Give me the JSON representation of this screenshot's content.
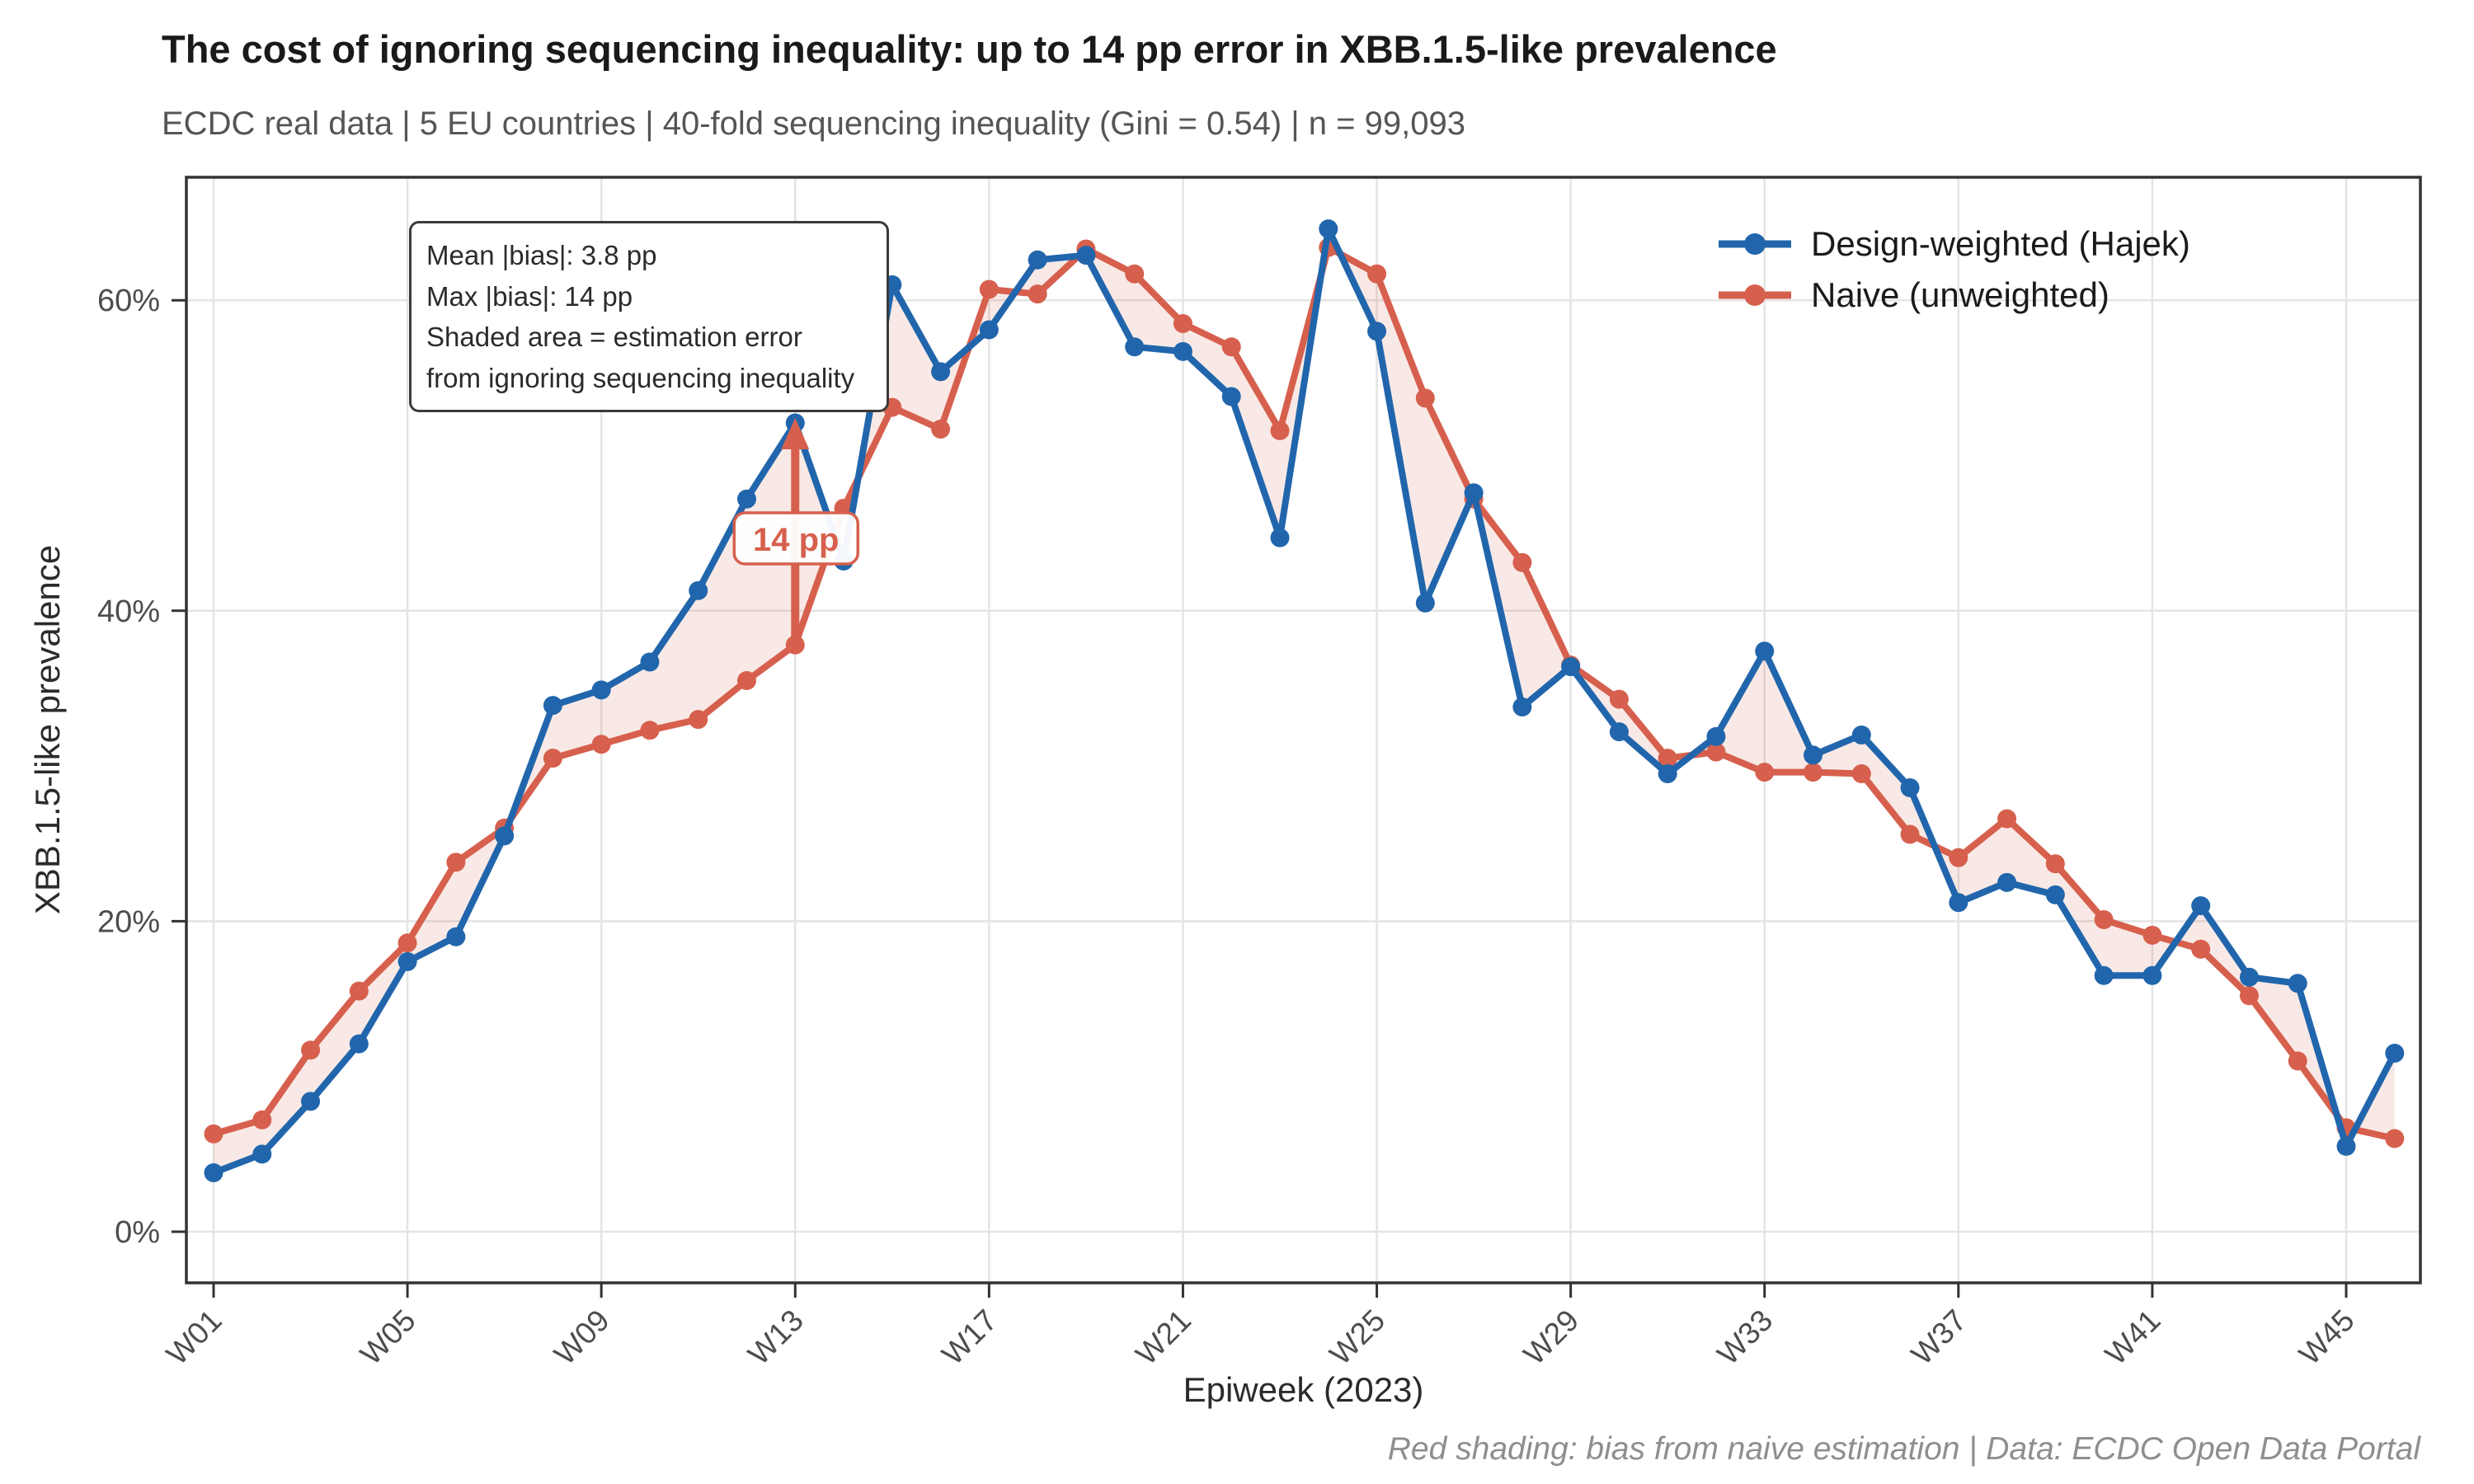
{
  "header": {
    "title": "The cost of ignoring sequencing inequality: up to 14 pp error in XBB.1.5-like prevalence",
    "subtitle": "ECDC real data | 5 EU countries | 40-fold sequencing inequality (Gini = 0.54) | n = 99,093"
  },
  "annotation_box": {
    "lines": [
      "Mean |bias|: 3.8 pp",
      "Max |bias|: 14 pp",
      "Shaded area = estimation error",
      "from ignoring sequencing inequality"
    ]
  },
  "legend": {
    "items": [
      {
        "label": "Design-weighted (Hajek)",
        "color": "#2166AC"
      },
      {
        "label": "Naive (unweighted)",
        "color": "#D6604D"
      }
    ]
  },
  "axes": {
    "x_title": "Epiweek (2023)",
    "y_title": "XBB.1.5-like prevalence",
    "y_tick_labels": [
      "0%",
      "20%",
      "40%",
      "60%"
    ],
    "x_tick_labels": [
      "W01",
      "W05",
      "W09",
      "W13",
      "W17",
      "W21",
      "W25",
      "W29",
      "W33",
      "W37",
      "W41",
      "W45"
    ]
  },
  "caption": "Red shading: bias from naive estimation | Data: ECDC Open Data Portal",
  "bias_callout": {
    "label": "14 pp",
    "week": "W13"
  },
  "colors": {
    "hajek_blue": "#2166AC",
    "naive_red": "#D6604D",
    "error_shading": "rgba(214,96,77,0.14)",
    "gridline": "#E4E4E4",
    "panel_border": "#333333",
    "tick_label": "#4D4D4D"
  },
  "chart_data": {
    "type": "line",
    "title": "The cost of ignoring sequencing inequality: up to 14 pp error in XBB.1.5-like prevalence",
    "subtitle": "ECDC real data | 5 EU countries | 40-fold sequencing inequality (Gini = 0.54) | n = 99,093",
    "xlabel": "Epiweek (2023)",
    "ylabel": "XBB.1.5-like prevalence",
    "ylim": [
      0,
      67
    ],
    "y_ticks_percent": [
      0,
      20,
      40,
      60
    ],
    "x_tick_every": 4,
    "grid": true,
    "legend_position": "top-right-inside",
    "x": [
      "W01",
      "W02",
      "W03",
      "W04",
      "W05",
      "W06",
      "W07",
      "W08",
      "W09",
      "W10",
      "W11",
      "W12",
      "W13",
      "W14",
      "W15",
      "W16",
      "W17",
      "W18",
      "W19",
      "W20",
      "W21",
      "W22",
      "W23",
      "W24",
      "W25",
      "W26",
      "W27",
      "W28",
      "W29",
      "W30",
      "W31",
      "W32",
      "W33",
      "W34",
      "W35",
      "W36",
      "W37",
      "W38",
      "W39",
      "W40",
      "W41",
      "W42",
      "W43",
      "W44",
      "W45",
      "W46"
    ],
    "series": [
      {
        "name": "Design-weighted (Hajek)",
        "color": "#2166AC",
        "values": [
          3.8,
          5.0,
          8.4,
          12.1,
          17.4,
          19.0,
          25.5,
          33.9,
          34.9,
          36.7,
          41.3,
          47.2,
          52.1,
          43.2,
          61.0,
          55.4,
          58.1,
          62.6,
          62.9,
          57.0,
          56.7,
          53.8,
          44.7,
          64.6,
          58.0,
          40.5,
          47.6,
          33.8,
          36.4,
          32.2,
          29.5,
          31.9,
          37.4,
          30.7,
          32.0,
          28.6,
          21.2,
          22.5,
          21.7,
          16.5,
          16.5,
          21.0,
          16.4,
          16.0,
          5.5,
          11.5
        ]
      },
      {
        "name": "Naive (unweighted)",
        "color": "#D6604D",
        "values": [
          6.3,
          7.2,
          11.7,
          15.5,
          18.6,
          23.8,
          26.0,
          30.5,
          31.4,
          32.3,
          33.0,
          35.5,
          37.8,
          46.6,
          53.1,
          51.7,
          60.7,
          60.4,
          63.3,
          61.7,
          58.5,
          57.0,
          51.6,
          63.4,
          61.7,
          53.7,
          47.2,
          43.1,
          36.5,
          34.3,
          30.5,
          30.9,
          29.6,
          29.6,
          29.5,
          25.6,
          24.1,
          26.6,
          23.7,
          20.1,
          19.1,
          18.2,
          15.2,
          11.0,
          6.7,
          6.0
        ]
      }
    ],
    "shaded_area": "between the two series (estimation error)",
    "annotations": [
      {
        "type": "arrow-callout",
        "x": "W13",
        "from_percent": 37.8,
        "to_percent": 52.1,
        "label": "14 pp"
      }
    ]
  }
}
